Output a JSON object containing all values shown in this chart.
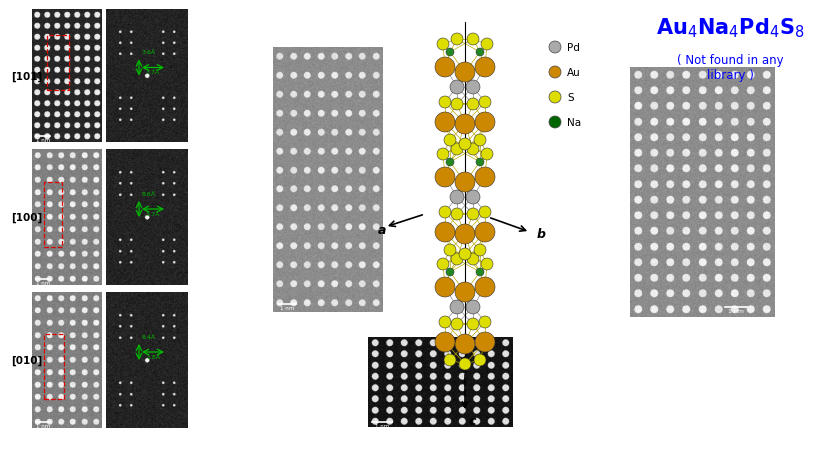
{
  "title_formula": "Au₄Na₄Pd₄S₈",
  "title_subtitle": "( Not found in any\nlibrary )",
  "title_color": "#0000FF",
  "subtitle_color": "#0000FF",
  "legend_items": [
    {
      "label": "Pd",
      "color": "#aaaaaa"
    },
    {
      "label": "Au",
      "color": "#cc8800"
    },
    {
      "label": "S",
      "color": "#dddd00"
    },
    {
      "label": "Na",
      "color": "#006600"
    }
  ],
  "zone_axes": [
    "[101]",
    "[100]",
    "[010]"
  ],
  "background_color": "#ffffff",
  "green_color": "#00bb00",
  "fft_annots": [
    {
      "v": "3.6Å",
      "h": "3.7Å"
    },
    {
      "v": "8.6Å",
      "h": "3.7Å"
    },
    {
      "v": "8.4Å",
      "h": "1.8Å"
    }
  ]
}
